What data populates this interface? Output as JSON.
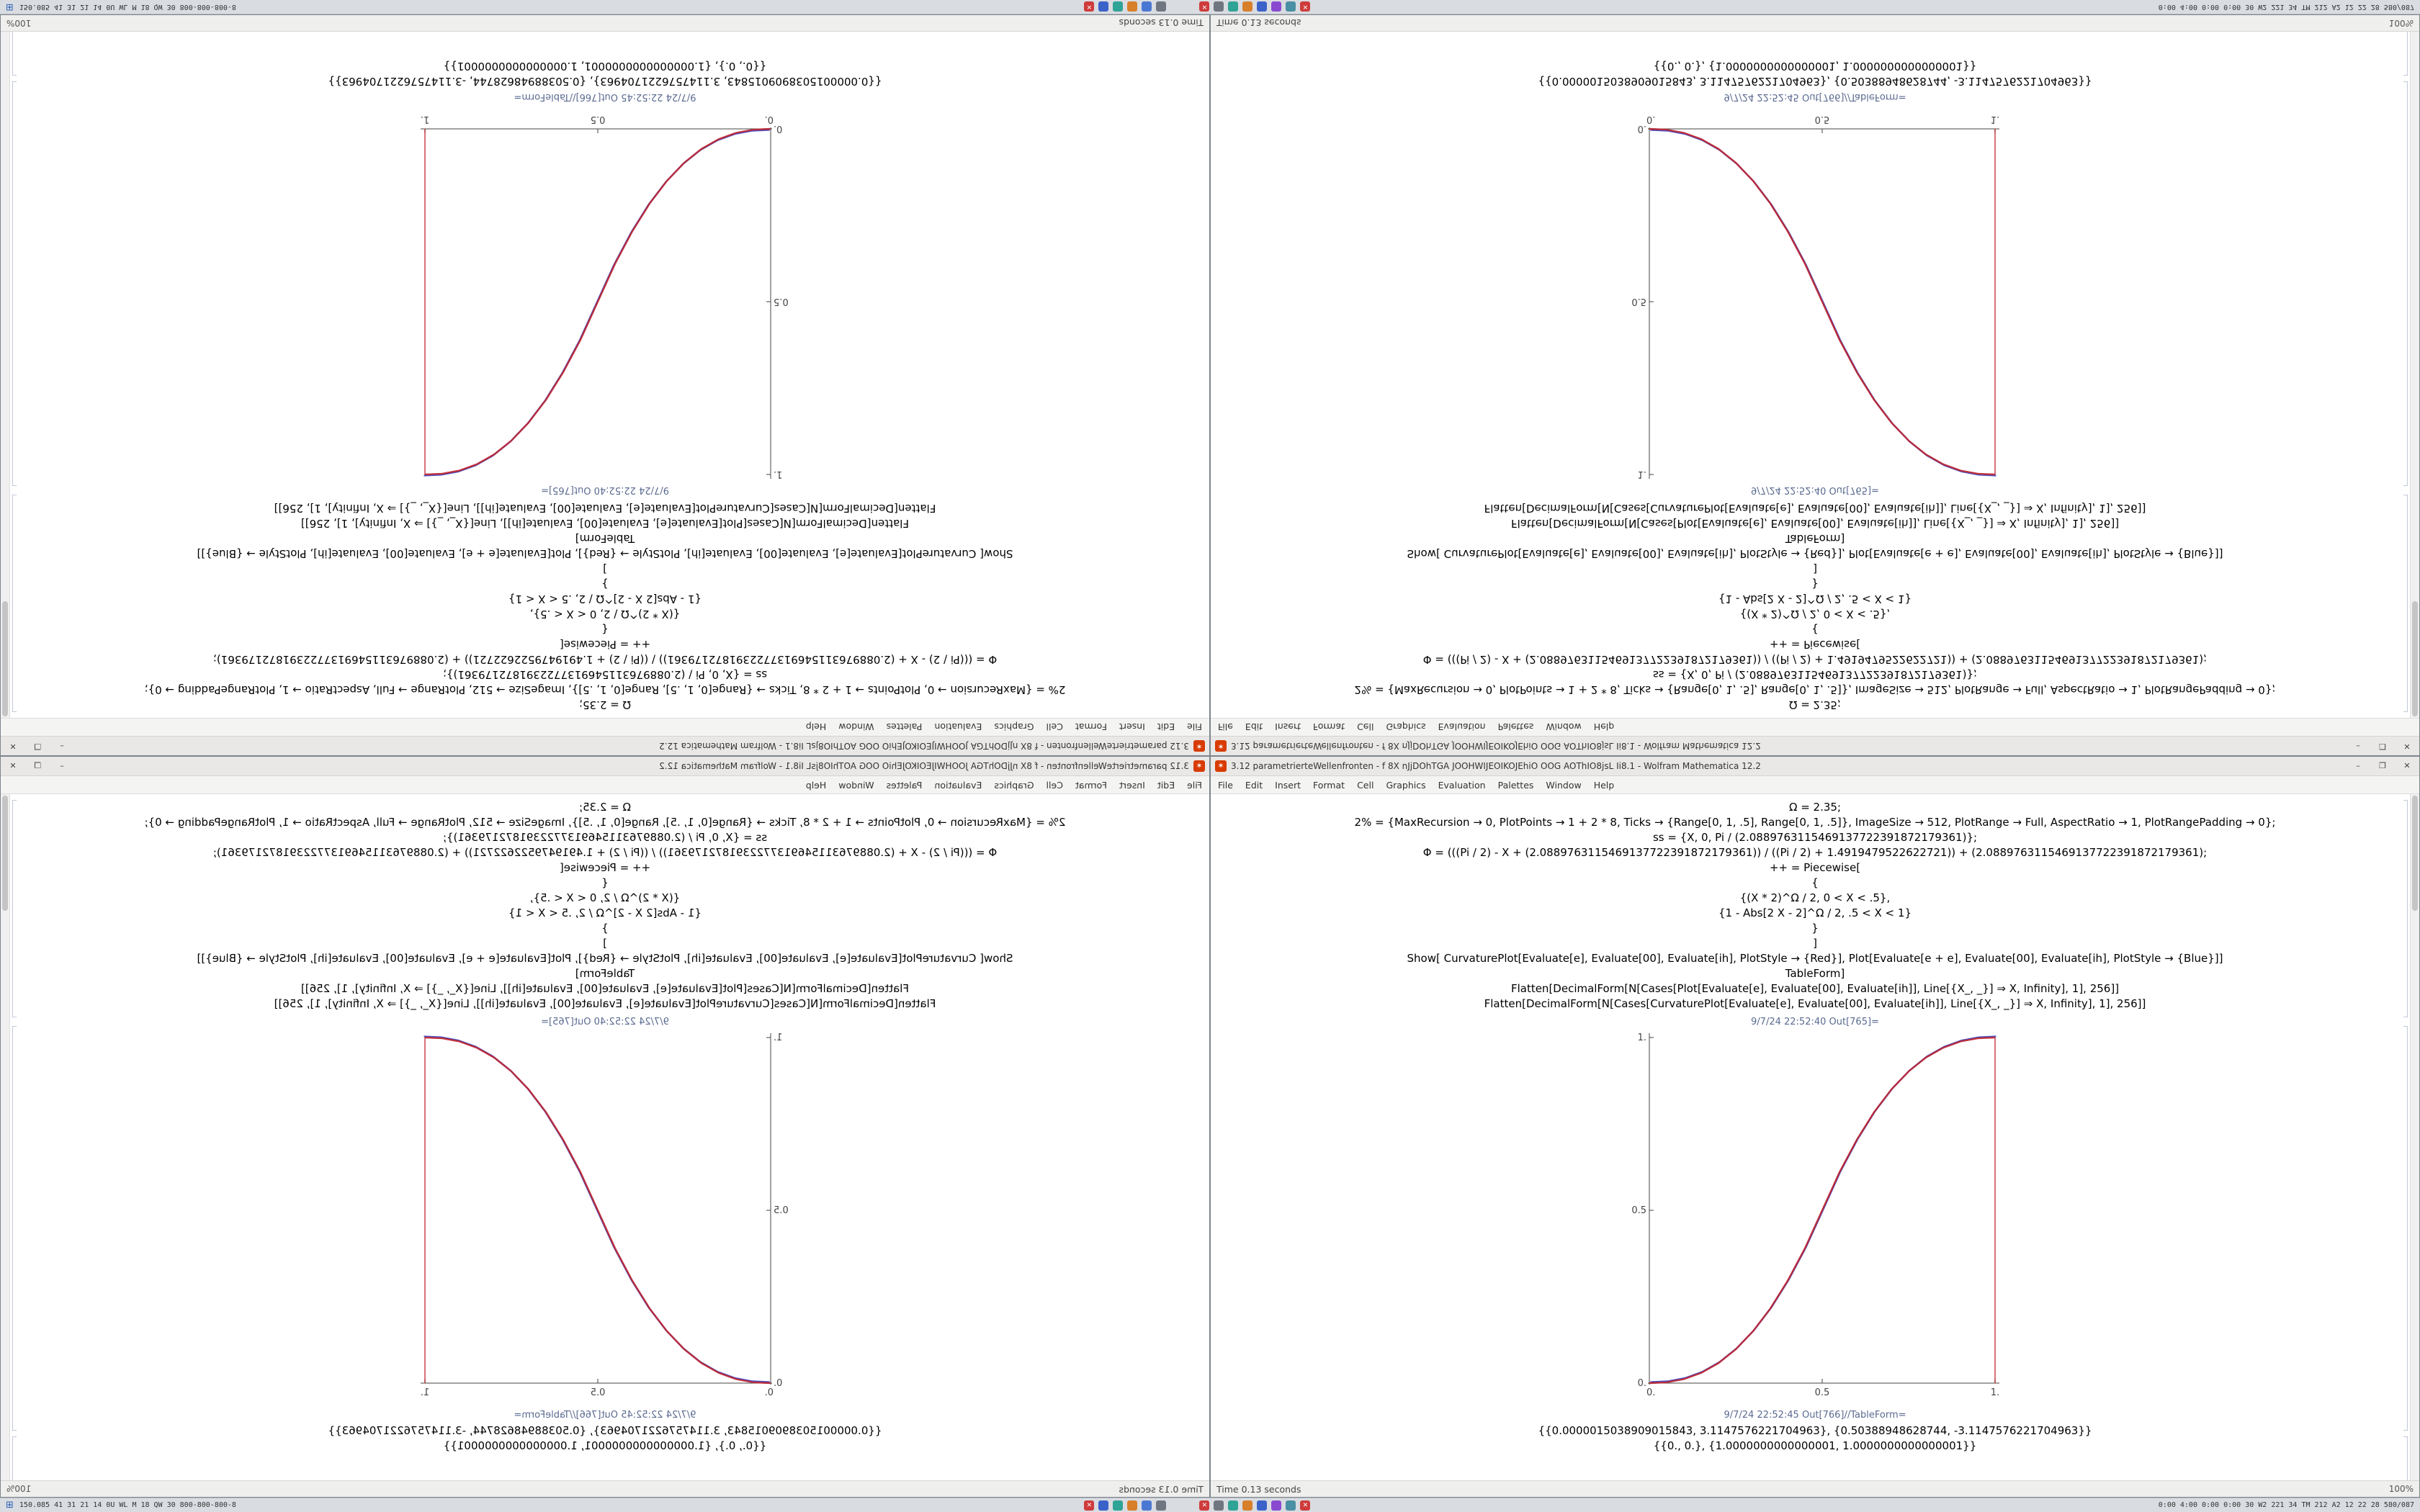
{
  "window": {
    "title": "3.12 parametrierteWellenfronten - f 8X nJjDOhTGA JOOHWIJEOIKOJEhiO OOG AOThIO8jsL Ii8.1 - Wolfram Mathematica 12.2",
    "icon_glyph": "✶",
    "buttons": {
      "minimize": "–",
      "maximize": "❐",
      "close": "✕"
    },
    "menu": [
      "File",
      "Edit",
      "Insert",
      "Format",
      "Cell",
      "Graphics",
      "Evaluation",
      "Palettes",
      "Window",
      "Help"
    ],
    "status_left": "Time 0.13 seconds",
    "zoom_level": "100%"
  },
  "notebook": {
    "input_lines": [
      "Ω = 2.35;",
      "2% = {MaxRecursion → 0, PlotPoints → 1 + 2 * 8, Ticks → {Range[0, 1, .5], Range[0, 1, .5]}, ImageSize → 512, PlotRange → Full, AspectRatio → 1, PlotRangePadding → 0};",
      "ss = {X, 0, Pi / (2.0889763115469137722391872179361)};",
      "Φ = (((Pi / 2) - X + (2.0889763115469137722391872179361)) / ((Pi / 2) + 1.4919479522622721)) + (2.0889763115469137722391872179361);",
      "++ = Piecewise[",
      "{",
      "{(X * 2)^Ω / 2, 0 < X < .5},",
      "{1 - Abs[2 X - 2]^Ω / 2, .5 < X < 1}",
      "}",
      "]",
      "Show[  CurvaturePlot[Evaluate[e], Evaluate[00], Evaluate[ih], PlotStyle → {Red}],  Plot[Evaluate[e + e], Evaluate[00], Evaluate[ih], PlotStyle → {Blue}]]",
      "TableForm]",
      "Flatten[DecimalForm[N[Cases[Plot[Evaluate[e], Evaluate[00], Evaluate[ih]], Line[{X_, _}] ⇒ X, Infinity], 1], 256]]",
      "Flatten[DecimalForm[N[Cases[CurvaturePlot[Evaluate[e], Evaluate[00], Evaluate[ih]], Line[{X_, _}] ⇒ X, Infinity], 1], 256]]"
    ],
    "out1_label": "9/7/24 22:52:40 Out[765]=",
    "out2_label": "9/7/24 22:52:45 Out[766]//TableForm=",
    "table_lines": [
      "{{0.0000015038909015843, 3.1147576221704963}, {0.50388948628744, -3.1147576221704963}}",
      "{{0., 0.}, {1.0000000000000001, 1.0000000000000001}}"
    ]
  },
  "chart_data": {
    "type": "line",
    "title": "",
    "xlabel": "",
    "ylabel": "",
    "xlim": [
      0,
      1
    ],
    "ylim": [
      0,
      1
    ],
    "grid": false,
    "legend": "none",
    "xtick_labels": [
      "0.",
      "0.5",
      "1."
    ],
    "ytick_labels": [
      "0.",
      "0.5",
      "1."
    ],
    "x": [
      0,
      0.05,
      0.1,
      0.15,
      0.2,
      0.25,
      0.3,
      0.35,
      0.4,
      0.45,
      0.5,
      0.55,
      0.6,
      0.65,
      0.7,
      0.75,
      0.8,
      0.85,
      0.9,
      0.95,
      1
    ],
    "y": [
      0,
      0.0022,
      0.0114,
      0.0295,
      0.058,
      0.098,
      0.1505,
      0.216,
      0.296,
      0.39,
      0.5,
      0.61,
      0.704,
      0.784,
      0.8495,
      0.902,
      0.942,
      0.9705,
      0.9886,
      0.9978,
      1
    ],
    "series": [
      {
        "name": "CurvaturePlot (Red)",
        "color": "#c0252f"
      },
      {
        "name": "Plot (Blue)",
        "color": "#3340c2"
      }
    ],
    "function": "piecewise sigmoid: y = (2x)^2.35 / 2 for 0 < x < .5 ; y = 1 - (2 - 2x)^2.35 / 2 for .5 < x < 1",
    "vertical_segment": {
      "x": 1,
      "from": 0,
      "to": 1
    },
    "out_table_766": [
      [
        1.5038909015843e-06,
        3.1147576221704965
      ],
      [
        0.50388948628744,
        -3.1147576221704965
      ]
    ],
    "out_table_endpoints": [
      [
        0,
        0
      ],
      [
        1.0,
        1.0
      ]
    ]
  },
  "taskbar": {
    "start_glyph": "⊞",
    "widget_left": "150.085  41 31 21 14 0U WL M 18 QW 30  800-800-800-8",
    "icons_group1": [
      {
        "color": "#cf3b3b",
        "glyph": "✕"
      },
      {
        "color": "#3a62c9",
        "glyph": ""
      },
      {
        "color": "#2fa396",
        "glyph": ""
      },
      {
        "color": "#d87f2a",
        "glyph": ""
      },
      {
        "color": "#4a77d4",
        "glyph": ""
      },
      {
        "color": "#6f7680",
        "glyph": ""
      }
    ],
    "icons_group2": [
      {
        "color": "#cf3b3b",
        "glyph": "✕"
      },
      {
        "color": "#6f7680",
        "glyph": ""
      },
      {
        "color": "#2fa396",
        "glyph": ""
      },
      {
        "color": "#d87f2a",
        "glyph": ""
      },
      {
        "color": "#3a62c9",
        "glyph": ""
      },
      {
        "color": "#8a4ad0",
        "glyph": ""
      },
      {
        "color": "#4a90a4",
        "glyph": ""
      },
      {
        "color": "#cf3b3b",
        "glyph": "✕"
      }
    ],
    "tray_right": "0:00 4:00 0:00 0:00  30 W2 221 34 TM 212 A2 12 22 28  580/087"
  }
}
